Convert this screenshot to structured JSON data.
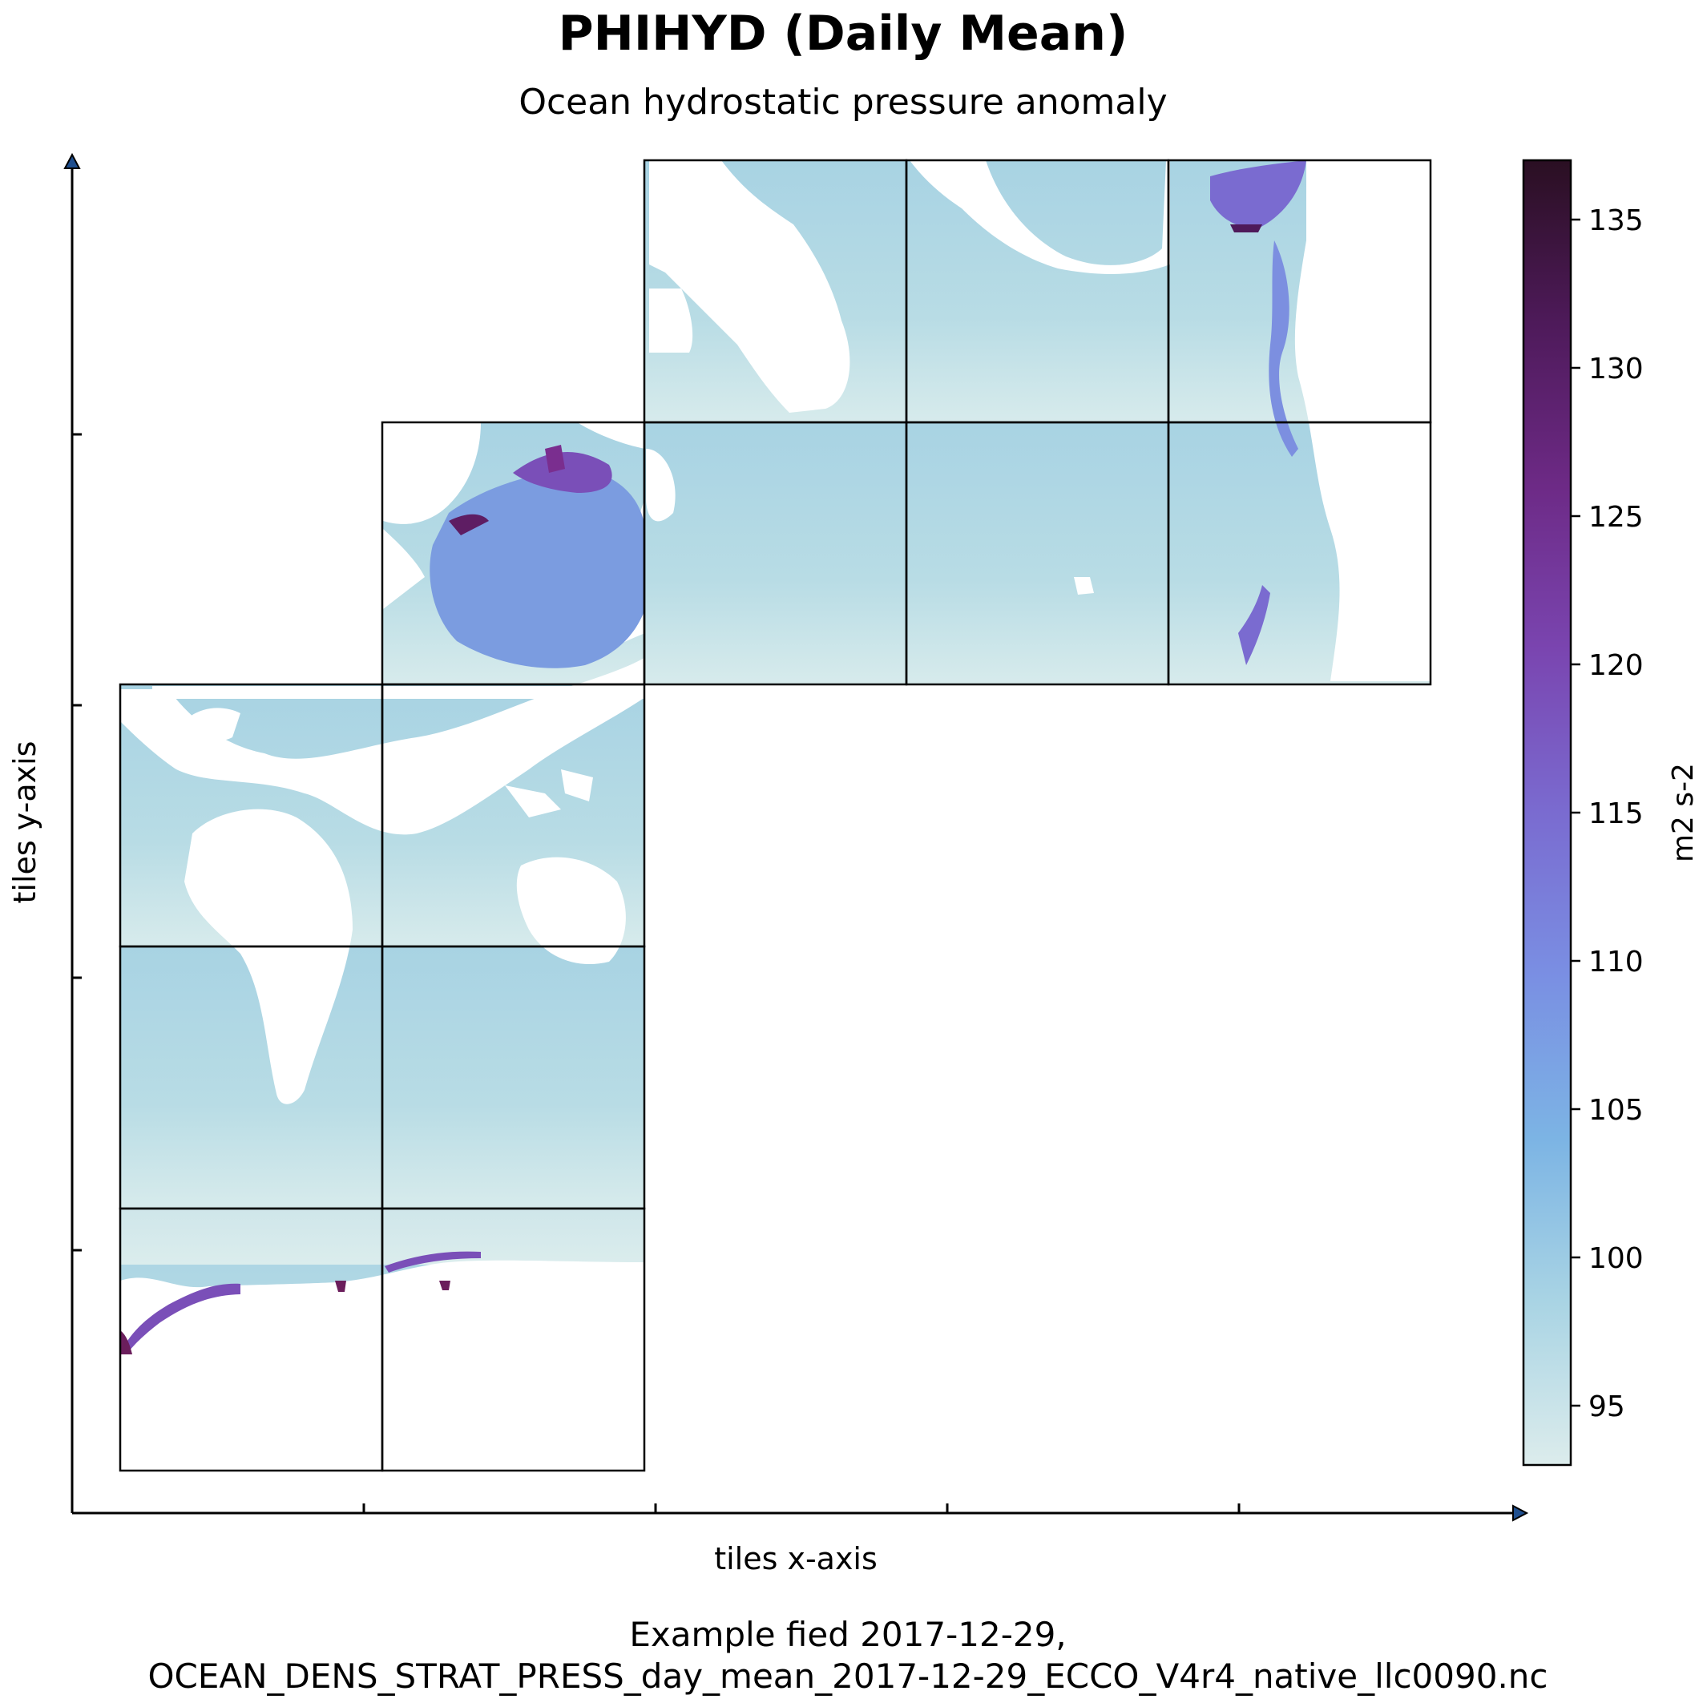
{
  "chart_data": {
    "type": "heatmap",
    "title": "PHIHYD (Daily Mean)",
    "subtitle": "Ocean hydrostatic pressure anomaly",
    "xlabel": "tiles x-axis",
    "ylabel": "tiles y-axis",
    "colorbar": {
      "label": "m2 s-2",
      "range": [
        93,
        137
      ],
      "ticks": [
        95,
        100,
        105,
        110,
        115,
        120,
        125,
        130,
        135
      ],
      "colormap": [
        "#dcecec",
        "#a9d4e4",
        "#7cb4e4",
        "#7a8fe3",
        "#7a6bd0",
        "#7a45b0",
        "#6d2a86",
        "#4e1a5a",
        "#2a0f22"
      ]
    },
    "footer": [
      "Example fied 2017-12-29,",
      "OCEAN_DENS_STRAT_PRESS_day_mean_2017-12-29_ECCO_V4r4_native_llc0090.nc"
    ],
    "colors": {
      "land": "#ffffff",
      "ocean_typical": "#b4d9e4",
      "ocean_high": "#7a4fb8",
      "ocean_extreme": "#6b1e5c"
    }
  }
}
